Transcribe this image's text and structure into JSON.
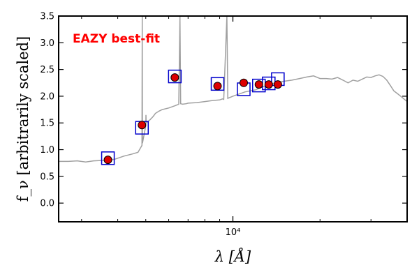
{
  "chart_data": {
    "type": "line",
    "title": "",
    "xlabel": "λ [Å]",
    "ylabel": "f_ν [arbitrarily scaled]",
    "x_scale": "log",
    "xlim": [
      2500,
      40000
    ],
    "ylim": [
      -0.35,
      3.5
    ],
    "grid": false,
    "legend": "none",
    "x_tick_labels": [
      {
        "value": 10000,
        "label": "10⁴"
      }
    ],
    "y_ticks": [
      0.0,
      0.5,
      1.0,
      1.5,
      2.0,
      2.5,
      3.0,
      3.5
    ],
    "annotation": {
      "text": "EAZY best-fit",
      "color": "#ff0000"
    },
    "colors": {
      "model": "#a0a0a0",
      "point_fill": "#dd0000",
      "box": "#0000cc"
    },
    "series": [
      {
        "kind": "model-spectrum",
        "x": [
          2500,
          2700,
          2900,
          3100,
          3300,
          3600,
          3900,
          4200,
          4500,
          4700,
          4850,
          4861,
          4870,
          5000,
          5006,
          5015,
          5150,
          5300,
          5400,
          5550,
          5700,
          6000,
          6300,
          6500,
          6563,
          6600,
          6700,
          6900,
          7000,
          7500,
          8000,
          8500,
          9000,
          9200,
          9300,
          9532,
          9600,
          10000,
          11000,
          12000,
          13000,
          14000,
          15000,
          16000,
          17000,
          18000,
          19000,
          20000,
          21000,
          22000,
          23000,
          24000,
          25000,
          26000,
          27000,
          28000,
          29000,
          30000,
          31000,
          32000,
          33000,
          34000,
          35000,
          36000,
          37000,
          38000,
          39000,
          40000
        ],
        "y": [
          0.78,
          0.78,
          0.79,
          0.77,
          0.79,
          0.8,
          0.82,
          0.88,
          0.92,
          0.95,
          1.08,
          3.5,
          1.12,
          1.45,
          1.65,
          1.5,
          1.55,
          1.62,
          1.68,
          1.72,
          1.75,
          1.78,
          1.82,
          1.85,
          3.5,
          1.86,
          1.85,
          1.86,
          1.87,
          1.88,
          1.9,
          1.92,
          1.93,
          1.95,
          1.94,
          3.5,
          1.96,
          2.0,
          2.08,
          2.12,
          2.2,
          2.25,
          2.28,
          2.3,
          2.33,
          2.36,
          2.38,
          2.33,
          2.33,
          2.32,
          2.35,
          2.3,
          2.25,
          2.3,
          2.28,
          2.32,
          2.36,
          2.35,
          2.38,
          2.4,
          2.37,
          2.3,
          2.2,
          2.1,
          2.05,
          2.0,
          1.95,
          1.9
        ]
      },
      {
        "kind": "observed-photometry",
        "x": [
          3700,
          4850,
          6300,
          8850,
          10900,
          12300,
          13300,
          14300
        ],
        "y": [
          0.81,
          1.46,
          2.35,
          2.19,
          2.25,
          2.22,
          2.22,
          2.22
        ]
      },
      {
        "kind": "model-photometry",
        "x": [
          3700,
          4850,
          6300,
          8850,
          10900,
          12300,
          13300,
          14300
        ],
        "y": [
          0.84,
          1.41,
          2.37,
          2.23,
          2.13,
          2.2,
          2.24,
          2.32
        ]
      }
    ]
  }
}
